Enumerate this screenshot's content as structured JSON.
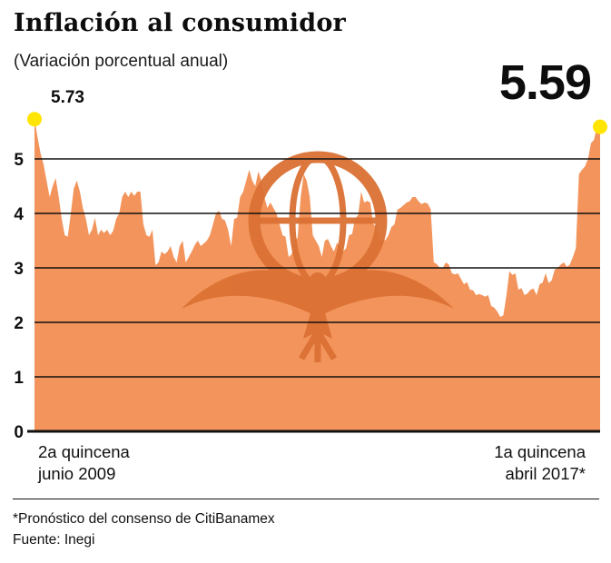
{
  "header": {
    "title": "Inflación al consumidor",
    "subtitle": "(Variación porcentual anual)"
  },
  "annotations": {
    "start_value_label": "5.73",
    "end_value_label": "5.59"
  },
  "x_axis": {
    "start_label_line1": "2a quincena",
    "start_label_line2": "junio 2009",
    "end_label_line1": "1a quincena",
    "end_label_line2": "abril 2017*"
  },
  "footer": {
    "note": "*Pronóstico del consenso de CitiBanamex",
    "source": "Fuente: Inegi"
  },
  "colors": {
    "area": "#F2945B",
    "watermark": "#DB7134",
    "dot": "#FFE500",
    "grid": "#111111",
    "axis": "#111111"
  },
  "chart_data": {
    "type": "area",
    "title": "Inflación al consumidor",
    "subtitle": "(Variación porcentual anual)",
    "xlabel": "",
    "ylabel": "Variación porcentual anual (%)",
    "ylim": [
      0,
      6
    ],
    "yticks": [
      0,
      1,
      2,
      3,
      4,
      5
    ],
    "grid": true,
    "x_start": "2a quincena junio 2009",
    "x_end": "1a quincena abril 2017*",
    "start_value": 5.73,
    "end_value": 5.59,
    "values": [
      5.73,
      5.4,
      5.1,
      4.9,
      4.6,
      4.3,
      4.5,
      4.65,
      4.3,
      3.9,
      3.6,
      3.57,
      4.0,
      4.46,
      4.6,
      4.4,
      4.1,
      3.9,
      3.6,
      3.7,
      3.92,
      3.6,
      3.7,
      3.64,
      3.7,
      3.6,
      3.68,
      3.9,
      4.0,
      4.3,
      4.4,
      4.3,
      4.4,
      4.32,
      4.4,
      4.4,
      3.8,
      3.6,
      3.57,
      3.7,
      3.05,
      3.1,
      3.3,
      3.25,
      3.3,
      3.4,
      3.2,
      3.1,
      3.4,
      3.5,
      3.1,
      3.2,
      3.3,
      3.42,
      3.5,
      3.4,
      3.45,
      3.5,
      3.6,
      3.8,
      4.0,
      4.05,
      3.9,
      3.87,
      3.7,
      3.4,
      3.9,
      3.92,
      4.3,
      4.4,
      4.6,
      4.8,
      4.6,
      4.5,
      4.77,
      4.6,
      4.3,
      4.1,
      4.2,
      4.1,
      4.0,
      3.8,
      3.6,
      3.57,
      3.2,
      3.25,
      3.5,
      3.55,
      4.3,
      4.72,
      4.6,
      4.3,
      3.6,
      3.5,
      3.4,
      3.2,
      3.5,
      3.53,
      3.4,
      3.3,
      3.46,
      3.4,
      3.3,
      3.36,
      3.6,
      3.62,
      3.9,
      3.97,
      4.4,
      4.2,
      4.23,
      4.2,
      3.8,
      3.76,
      3.5,
      3.5,
      3.51,
      3.6,
      3.75,
      3.8,
      4.07,
      4.1,
      4.15,
      4.2,
      4.22,
      4.3,
      4.3,
      4.22,
      4.17,
      4.2,
      4.18,
      4.08,
      3.1,
      3.07,
      3.0,
      3.0,
      3.1,
      3.06,
      2.9,
      2.88,
      2.9,
      2.8,
      2.7,
      2.74,
      2.6,
      2.59,
      2.5,
      2.52,
      2.5,
      2.47,
      2.5,
      2.3,
      2.27,
      2.2,
      2.1,
      2.13,
      2.48,
      2.94,
      2.87,
      2.9,
      2.6,
      2.63,
      2.5,
      2.53,
      2.6,
      2.62,
      2.5,
      2.7,
      2.73,
      2.9,
      2.72,
      2.77,
      2.97,
      3.0,
      3.06,
      3.1,
      3.02,
      3.06,
      3.2,
      3.36,
      4.72,
      4.8,
      4.86,
      5.0,
      5.29,
      5.35,
      5.6,
      5.59
    ]
  }
}
